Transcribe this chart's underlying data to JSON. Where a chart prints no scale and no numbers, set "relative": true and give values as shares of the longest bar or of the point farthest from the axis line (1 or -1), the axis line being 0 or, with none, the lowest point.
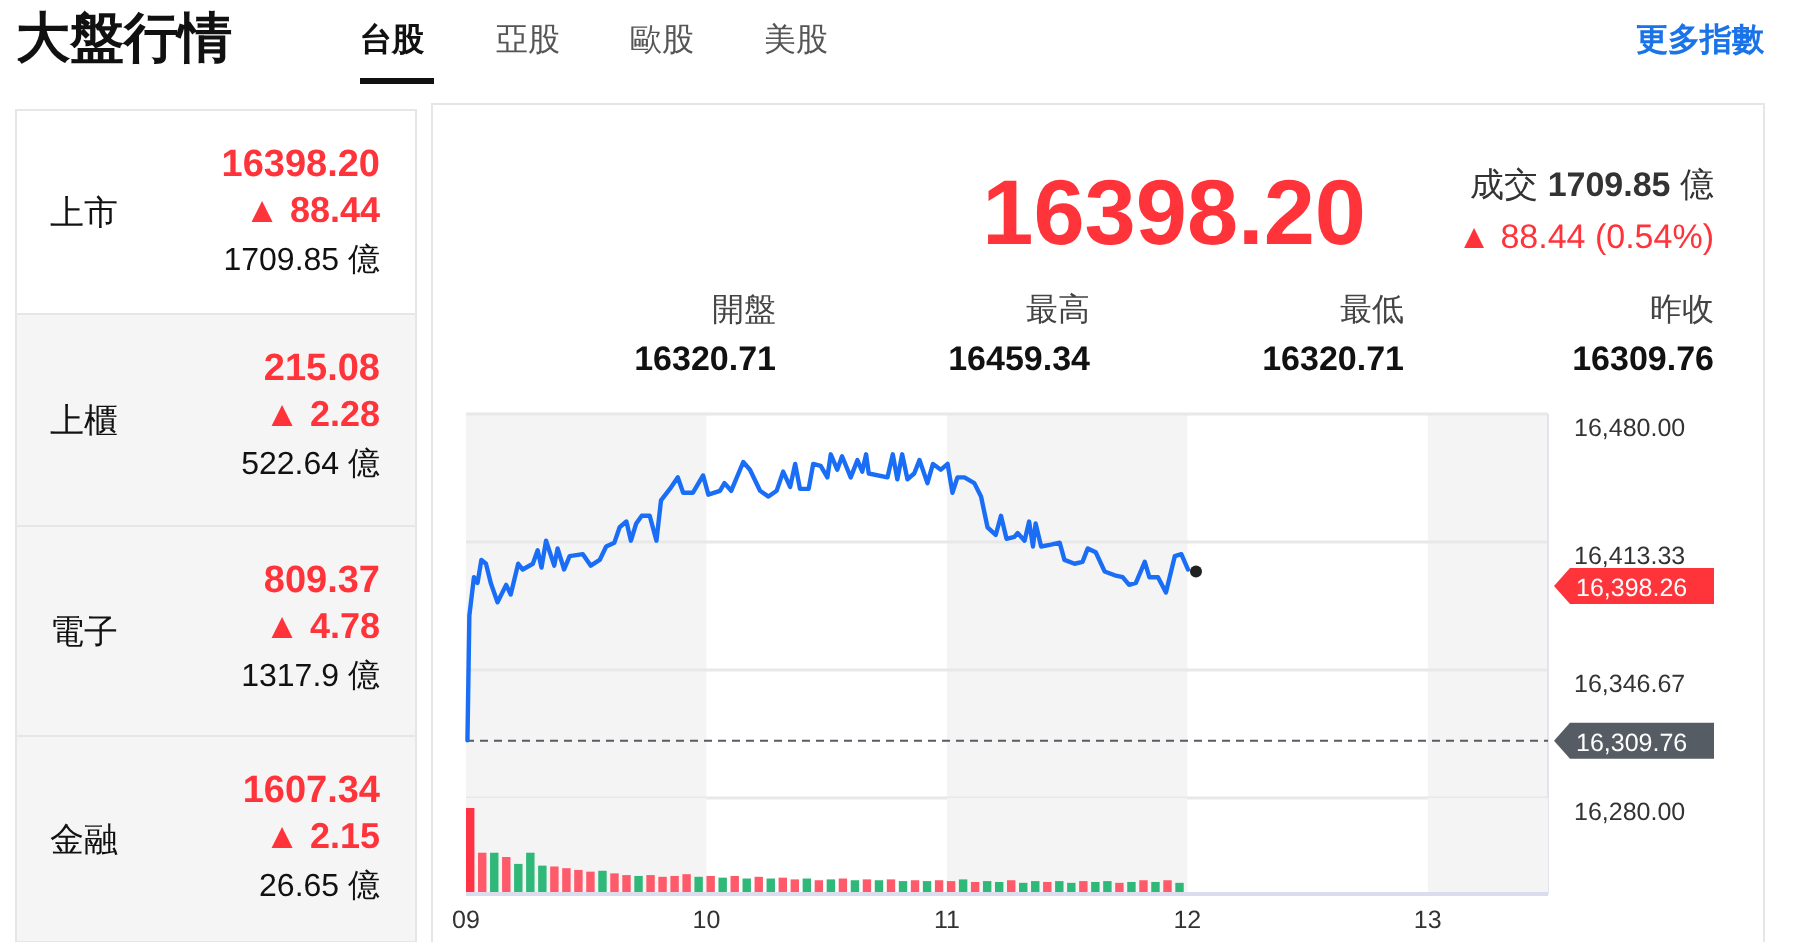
{
  "chart_data": [
    {
      "type": "other",
      "title": "大盤行情",
      "annotations": [
        "台股",
        "亞股",
        "歐股",
        "美股",
        "更多指數",
        "上市",
        "16398.20",
        "▲ 88.44",
        "1709.85 億",
        "上櫃",
        "215.08",
        "▲ 2.28",
        "522.64 億",
        "電子",
        "809.37",
        "▲ 4.78",
        "1317.9 億",
        "金融",
        "1607.34",
        "▲ 2.15",
        "26.65 億",
        "16398.20",
        "成交 **1709.85** 億",
        "▲ 88.44 (0.54%)",
        "開盤",
        "16320.71",
        "最高",
        "16459.34",
        "最低",
        "16320.71",
        "昨收",
        "16309.76"
      ]
    },
    {
      "type": "line",
      "tick_labels": "y",
      "grid": "y",
      "xlim": [
        9,
        13.5
      ],
      "ylim": [
        16280,
        16480
      ],
      "yticks": [
        {
          "value": 16480,
          "label": "16,480.00"
        },
        {
          "value": 16413.33,
          "label": "16,413.33"
        },
        {
          "value": 16346.67,
          "label": "16,346.67"
        },
        {
          "value": 16280,
          "label": "16,280.00"
        }
      ],
      "series": [
        {
          "type": "line",
          "color": "#1a6ef5",
          "x": [
            9.006,
            9.014,
            9.033,
            9.048,
            9.064,
            9.083,
            9.103,
            9.131,
            9.167,
            9.186,
            9.217,
            9.236,
            9.278,
            9.298,
            9.314,
            9.333,
            9.367,
            9.381,
            9.408,
            9.431,
            9.486,
            9.519,
            9.556,
            9.583,
            9.617,
            9.639,
            9.667,
            9.686,
            9.708,
            9.731,
            9.764,
            9.792,
            9.811,
            9.848,
            9.881,
            9.903,
            9.944,
            9.986,
            10.008,
            10.056,
            10.075,
            10.103,
            10.153,
            10.181,
            10.223,
            10.258,
            10.292,
            10.319,
            10.348,
            10.369,
            10.389,
            10.425,
            10.444,
            10.475,
            10.503,
            10.517,
            10.544,
            10.564,
            10.6,
            10.628,
            10.648,
            10.664,
            10.675,
            10.753,
            10.775,
            10.794,
            10.814,
            10.836,
            10.864,
            10.886,
            10.919,
            10.942,
            10.975,
            11.003,
            11.023,
            11.044,
            11.073,
            11.114,
            11.142,
            11.169,
            11.203,
            11.225,
            11.248,
            11.281,
            11.294,
            11.323,
            11.342,
            11.358,
            11.369,
            11.392,
            11.433,
            11.469,
            11.489,
            11.531,
            11.564,
            11.586,
            11.619,
            11.656,
            11.698,
            11.731,
            11.758,
            11.786,
            11.823,
            11.842,
            11.878,
            11.911,
            11.948,
            11.975,
            12.003
          ],
          "values": [
            16310,
            16375,
            16395,
            16392,
            16404,
            16402,
            16392,
            16382,
            16391,
            16386,
            16402,
            16399,
            16402,
            16409,
            16400,
            16414,
            16401,
            16410,
            16399,
            16406,
            16407,
            16401,
            16404,
            16411,
            16413,
            16421,
            16424,
            16414,
            16423,
            16427,
            16427,
            16414,
            16435,
            16441,
            16447,
            16439,
            16439,
            16448,
            16438,
            16440,
            16444,
            16440,
            16455,
            16451,
            16440,
            16437,
            16440,
            16450,
            16442,
            16454,
            16441,
            16441,
            16454,
            16453,
            16447,
            16459,
            16451,
            16458,
            16447,
            16456,
            16450,
            16459,
            16449,
            16447,
            16459,
            16446,
            16459,
            16446,
            16449,
            16456,
            16444,
            16454,
            16451,
            16454,
            16439,
            16447,
            16447,
            16444,
            16437,
            16421,
            16417,
            16427,
            16415,
            16416,
            16418,
            16414,
            16424,
            16411,
            16423,
            16411,
            16412,
            16413,
            16404,
            16402,
            16403,
            16410,
            16408,
            16398,
            16396,
            16395,
            16391,
            16392,
            16403,
            16395,
            16395,
            16387,
            16406,
            16407,
            16399
          ]
        },
        {
          "type": "scatter",
          "color": "#222222",
          "marker": "circle",
          "x": [
            12.036
          ],
          "values": [
            16398
          ]
        }
      ],
      "ref_lines": [
        {
          "axis": "y",
          "value": 16309.76,
          "label": "16,309.76",
          "color": "#555c63",
          "line_style": "dashed"
        }
      ],
      "bands": [
        {
          "axis": "x",
          "from": 9,
          "to": 10,
          "color": "#f4f4f4"
        },
        {
          "axis": "x",
          "from": 11,
          "to": 12,
          "color": "#f4f4f4"
        },
        {
          "axis": "x",
          "from": 13,
          "to": 13.5,
          "color": "#f4f4f4"
        }
      ],
      "annotations": [
        "16,398.26"
      ]
    },
    {
      "type": "bar",
      "relative": true,
      "tick_labels": "x",
      "xlim": [
        9,
        13.5
      ],
      "xticks": [
        {
          "value": 9,
          "label": "09"
        },
        10,
        11,
        12,
        13
      ],
      "x": [
        9,
        9.05,
        9.1,
        9.15,
        9.2,
        9.25,
        9.3,
        9.35,
        9.4,
        9.45,
        9.5,
        9.55,
        9.6,
        9.65,
        9.7,
        9.75,
        9.8,
        9.85,
        9.9,
        9.95,
        10,
        10.05,
        10.1,
        10.15,
        10.2,
        10.25,
        10.3,
        10.35,
        10.4,
        10.45,
        10.5,
        10.55,
        10.6,
        10.65,
        10.7,
        10.75,
        10.8,
        10.85,
        10.9,
        10.95,
        11,
        11.05,
        11.1,
        11.15,
        11.2,
        11.25,
        11.3,
        11.35,
        11.4,
        11.45,
        11.5,
        11.55,
        11.6,
        11.65,
        11.7,
        11.75,
        11.8,
        11.85,
        11.9,
        11.95
      ],
      "values": [
        1.0,
        0.48,
        0.48,
        0.43,
        0.35,
        0.48,
        0.33,
        0.32,
        0.3,
        0.28,
        0.26,
        0.27,
        0.24,
        0.22,
        0.21,
        0.22,
        0.2,
        0.21,
        0.23,
        0.2,
        0.21,
        0.19,
        0.21,
        0.18,
        0.2,
        0.18,
        0.19,
        0.17,
        0.18,
        0.16,
        0.17,
        0.18,
        0.16,
        0.17,
        0.16,
        0.17,
        0.15,
        0.16,
        0.15,
        0.16,
        0.15,
        0.17,
        0.14,
        0.15,
        0.14,
        0.16,
        0.13,
        0.15,
        0.14,
        0.15,
        0.13,
        0.15,
        0.14,
        0.15,
        0.13,
        0.14,
        0.16,
        0.14,
        0.16,
        0.13
      ],
      "colors": [
        "#ff3344",
        "#ff5a6a",
        "#2fb878",
        "#ff5a6a",
        "#2fb878",
        "#2fb878",
        "#2fb878",
        "#ff5a6a",
        "#ff5a6a",
        "#ff5a6a",
        "#ff5a6a",
        "#2fb878",
        "#ff5a6a",
        "#ff5a6a",
        "#2fb878",
        "#ff5a6a",
        "#ff5a6a",
        "#ff5a6a",
        "#ff5a6a",
        "#2fb878",
        "#ff5a6a",
        "#2fb878",
        "#ff5a6a",
        "#2fb878",
        "#ff5a6a",
        "#2fb878",
        "#ff5a6a",
        "#ff5a6a",
        "#2fb878",
        "#ff5a6a",
        "#2fb878",
        "#ff5a6a",
        "#2fb878",
        "#ff5a6a",
        "#2fb878",
        "#ff5a6a",
        "#2fb878",
        "#ff5a6a",
        "#2fb878",
        "#ff5a6a",
        "#ff5a6a",
        "#2fb878",
        "#ff5a6a",
        "#2fb878",
        "#2fb878",
        "#ff5a6a",
        "#2fb878",
        "#2fb878",
        "#ff5a6a",
        "#2fb878",
        "#2fb878",
        "#ff5a6a",
        "#2fb878",
        "#2fb878",
        "#ff5a6a",
        "#2fb878",
        "#ff5a6a",
        "#2fb878",
        "#ff5a6a",
        "#2fb878"
      ],
      "bands": [
        {
          "axis": "x",
          "from": 9,
          "to": 10,
          "color": "#f4f4f4"
        },
        {
          "axis": "x",
          "from": 11,
          "to": 12,
          "color": "#f4f4f4"
        },
        {
          "axis": "x",
          "from": 13,
          "to": 13.5,
          "color": "#f4f4f4"
        }
      ]
    }
  ]
}
